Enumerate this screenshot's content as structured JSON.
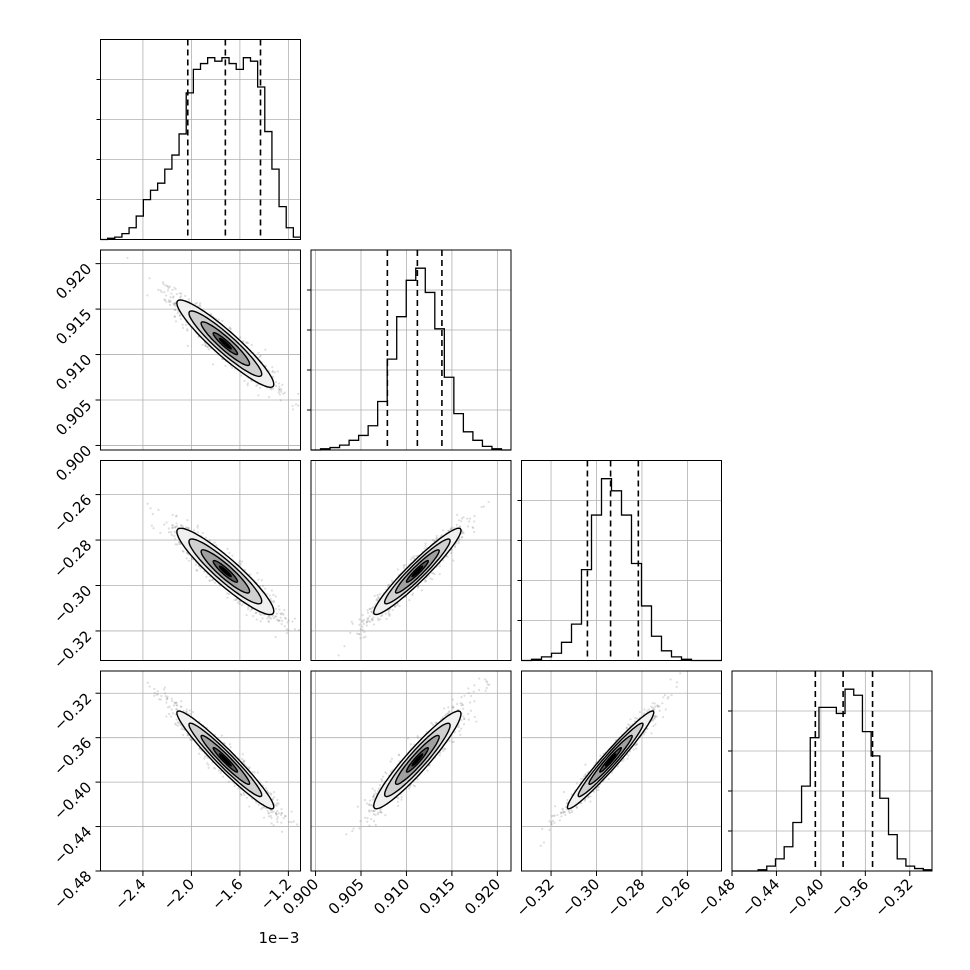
{
  "chart_data": {
    "type": "corner",
    "grid": true,
    "parameters": [
      {
        "range": [
          -2.75,
          -1.1
        ],
        "ticks": [
          -2.4,
          -2.0,
          -1.6,
          -1.2
        ],
        "tick_labels": [
          "−2.4",
          "−2.0",
          "−1.6",
          "−1.2"
        ],
        "offset_text": "1e−3"
      },
      {
        "range": [
          0.8995,
          0.9215
        ],
        "ticks": [
          0.9,
          0.905,
          0.91,
          0.915,
          0.92
        ],
        "tick_labels": [
          "0.900",
          "0.905",
          "0.910",
          "0.915",
          "0.920"
        ]
      },
      {
        "range": [
          -0.333,
          -0.245
        ],
        "ticks": [
          -0.32,
          -0.3,
          -0.28,
          -0.26
        ],
        "tick_labels": [
          "−0.32",
          "−0.30",
          "−0.28",
          "−0.26"
        ]
      },
      {
        "range": [
          -0.48,
          -0.3
        ],
        "ticks": [
          -0.48,
          -0.44,
          -0.4,
          -0.36,
          -0.32
        ],
        "tick_labels": [
          "−0.48",
          "−0.44",
          "−0.40",
          "−0.36",
          "−0.32"
        ]
      }
    ],
    "quantiles": [
      [
        -2.03,
        -1.72,
        -1.43
      ],
      [
        0.9079,
        0.9112,
        0.9139
      ],
      [
        -0.304,
        -0.2938,
        -0.2816
      ],
      [
        -0.405,
        -0.38,
        -0.3535
      ]
    ],
    "histograms": [
      {
        "edges": [
          -2.75,
          -1.1
        ],
        "counts": [
          0,
          1,
          2,
          5,
          10,
          20,
          34,
          42,
          48,
          60,
          72,
          90,
          125,
          145,
          150,
          155,
          152,
          155,
          150,
          145,
          155,
          152,
          130,
          92,
          60,
          28,
          10,
          2
        ]
      },
      {
        "edges": [
          0.8995,
          0.9215
        ],
        "counts": [
          0,
          1,
          2,
          4,
          8,
          12,
          20,
          40,
          75,
          110,
          140,
          150,
          130,
          100,
          60,
          30,
          15,
          8,
          3,
          1,
          0
        ]
      },
      {
        "edges": [
          -0.333,
          -0.245
        ],
        "counts": [
          0,
          1,
          3,
          6,
          15,
          30,
          75,
          120,
          150,
          140,
          120,
          80,
          45,
          20,
          8,
          3,
          1,
          0,
          0,
          0
        ]
      },
      {
        "edges": [
          -0.48,
          -0.3
        ],
        "counts": [
          0,
          0,
          0,
          1,
          4,
          10,
          20,
          40,
          70,
          110,
          135,
          135,
          130,
          150,
          145,
          115,
          95,
          60,
          30,
          10,
          4,
          2,
          1
        ]
      }
    ],
    "correlations": [
      {
        "row": 1,
        "col": 0,
        "mean_x": -1.72,
        "mean_y": 0.9112,
        "sd_x": 0.2,
        "sd_y": 0.0024,
        "rho": -0.93
      },
      {
        "row": 2,
        "col": 0,
        "mean_x": -1.72,
        "mean_y": -0.2938,
        "sd_x": 0.2,
        "sd_y": 0.0095,
        "rho": -0.92
      },
      {
        "row": 2,
        "col": 1,
        "mean_x": 0.9112,
        "mean_y": -0.2938,
        "sd_x": 0.0024,
        "sd_y": 0.0095,
        "rho": 0.95
      },
      {
        "row": 3,
        "col": 0,
        "mean_x": -1.72,
        "mean_y": -0.38,
        "sd_x": 0.2,
        "sd_y": 0.022,
        "rho": -0.96
      },
      {
        "row": 3,
        "col": 1,
        "mean_x": 0.9112,
        "mean_y": -0.38,
        "sd_x": 0.0024,
        "sd_y": 0.022,
        "rho": 0.94
      },
      {
        "row": 3,
        "col": 2,
        "mean_x": -0.2938,
        "mean_y": -0.38,
        "sd_x": 0.0095,
        "sd_y": 0.022,
        "rho": 0.97
      }
    ],
    "contour_levels": [
      0.5,
      1.0,
      1.5,
      2.0
    ],
    "colors": {
      "line": "#000000",
      "grid": "#b0b0b0",
      "points": "#7a7a7a",
      "fills": [
        "#f0f0f0",
        "#d0d0d0",
        "#a0a0a0",
        "#606060",
        "#000000"
      ]
    }
  }
}
